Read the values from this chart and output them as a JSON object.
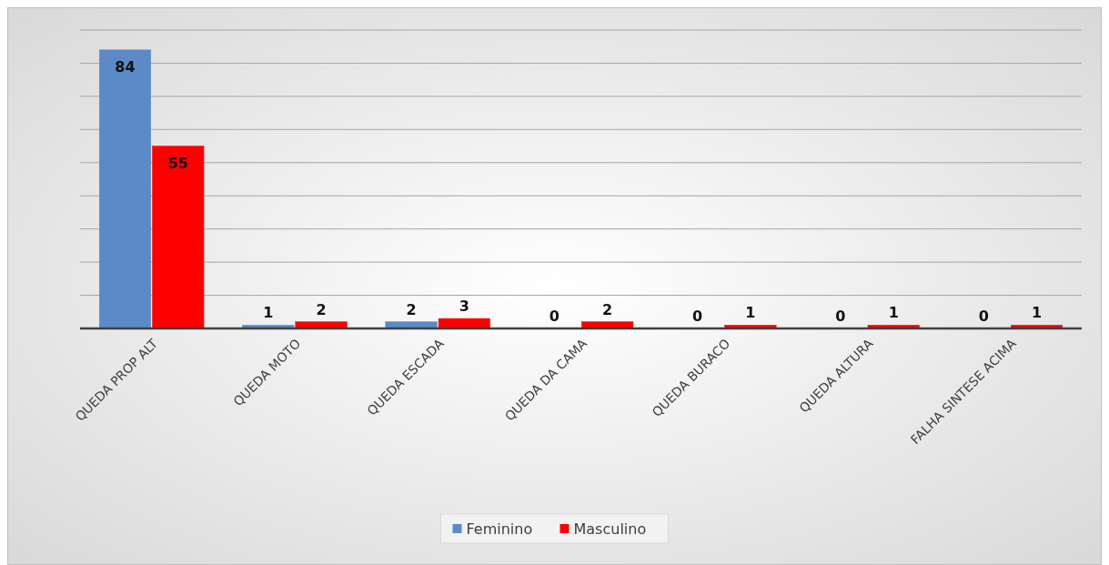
{
  "chart_data": {
    "type": "bar",
    "categories": [
      "QUEDA PROP ALT",
      "QUEDA MOTO",
      "QUEDA ESCADA",
      "QUEDA DA CAMA",
      "QUEDA BURACO",
      "QUEDA ALTURA",
      "FALHA SINTESE ACIMA"
    ],
    "series": [
      {
        "name": "Feminino",
        "color": "#5b8ac6",
        "values": [
          84,
          1,
          2,
          0,
          0,
          0,
          0
        ]
      },
      {
        "name": "Masculino",
        "color": "#ff0000",
        "values": [
          55,
          2,
          3,
          2,
          1,
          1,
          1
        ]
      }
    ],
    "ylim": [
      0,
      90
    ],
    "yticks": [
      {
        "value": 0,
        "label": null
      },
      {
        "value": 10,
        "label": null
      },
      {
        "value": 20,
        "label": null
      },
      {
        "value": 30,
        "label": null
      },
      {
        "value": 40,
        "label": null
      },
      {
        "value": 50,
        "label": null
      },
      {
        "value": 60,
        "label": null
      },
      {
        "value": 70,
        "label": null
      },
      {
        "value": 80,
        "label": null
      },
      {
        "value": 90,
        "label": null
      }
    ],
    "grid": "y",
    "legend": "bottom",
    "data_labels": true,
    "tick_labels": "x"
  }
}
